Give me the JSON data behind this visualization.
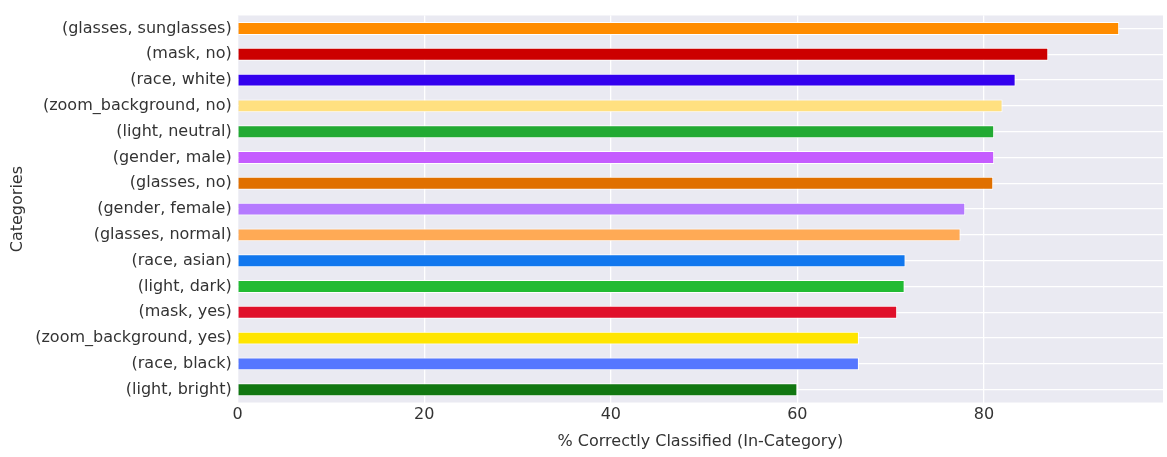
{
  "chart_data": {
    "type": "bar",
    "orientation": "horizontal",
    "xlabel": "% Correctly Classified (In-Category)",
    "ylabel": "Categories",
    "categories": [
      "(glasses, sunglasses)",
      "(mask, no)",
      "(race, white)",
      "(zoom_background, no)",
      "(light, neutral)",
      "(gender, male)",
      "(glasses, no)",
      "(gender, female)",
      "(glasses, normal)",
      "(race, asian)",
      "(light, dark)",
      "(mask, yes)",
      "(zoom_background, yes)",
      "(race, black)",
      "(light, bright)"
    ],
    "values": [
      94.5,
      86.9,
      83.4,
      82.0,
      81.1,
      81.1,
      81.0,
      78.0,
      77.5,
      71.6,
      71.5,
      70.7,
      66.6,
      66.6,
      60.0
    ],
    "colors": [
      "#ff8c00",
      "#cc0000",
      "#3300ee",
      "#ffe080",
      "#22aa33",
      "#c55cff",
      "#e07000",
      "#b57aff",
      "#ffaa55",
      "#1177ee",
      "#22bb33",
      "#e0102a",
      "#ffe500",
      "#5577ff",
      "#117711"
    ],
    "xlim": [
      0,
      99.2
    ],
    "xticks": [
      0,
      20,
      40,
      60,
      80
    ],
    "grid": true,
    "legend": false
  }
}
